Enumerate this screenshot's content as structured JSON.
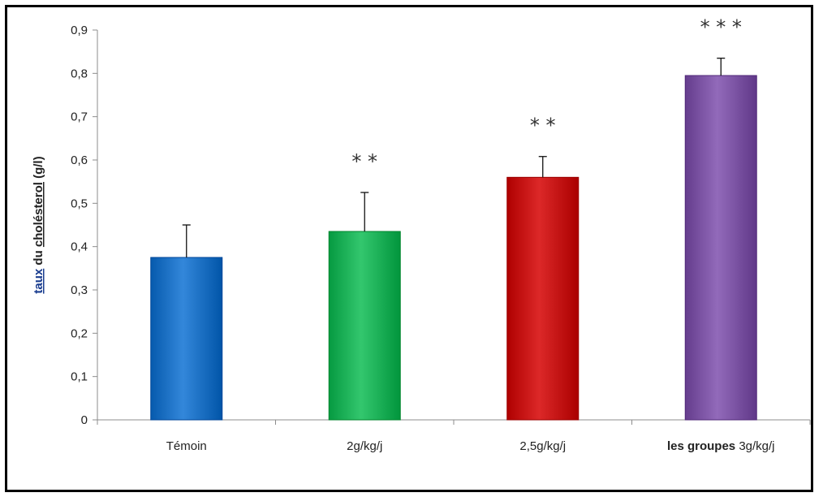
{
  "chart_data": {
    "type": "bar",
    "title": "",
    "ylabel_parts": [
      "taux",
      " du ",
      "cholésterol",
      " (g/l)"
    ],
    "xlabel": "les groupes",
    "categories": [
      "Témoin",
      "2g/kg/j",
      "2,5g/kg/j",
      "3g/kg/j"
    ],
    "values": [
      0.375,
      0.435,
      0.56,
      0.795
    ],
    "error_upper": [
      0.45,
      0.525,
      0.608,
      0.835
    ],
    "significance": [
      "",
      "**",
      "**",
      "***"
    ],
    "colors": [
      "#1f73c6",
      "#1fb35a",
      "#c81414",
      "#7e56a6"
    ],
    "ylim": [
      0,
      0.9
    ],
    "yticks": [
      "0",
      "0,1",
      "0,2",
      "0,3",
      "0,4",
      "0,5",
      "0,6",
      "0,7",
      "0,8",
      "0,9"
    ],
    "grid": false,
    "legend": "none"
  }
}
